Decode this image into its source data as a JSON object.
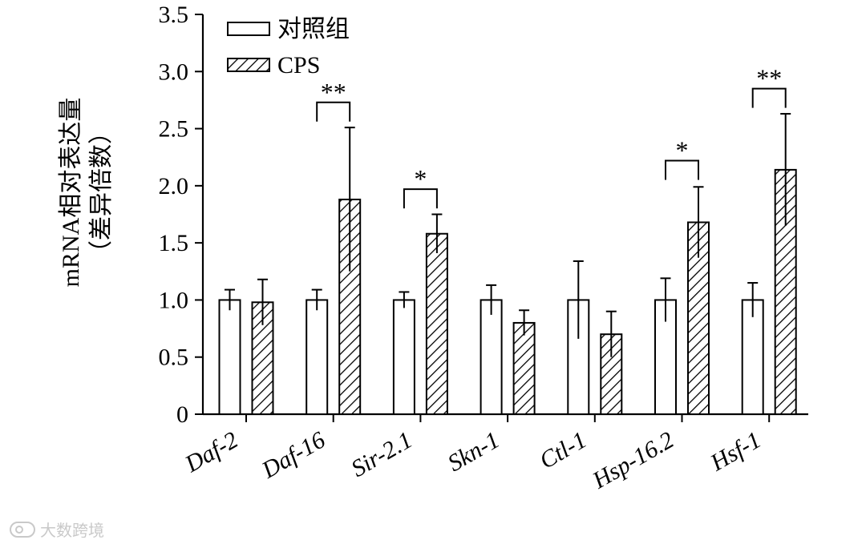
{
  "chart_data": {
    "type": "bar",
    "ylabel": "mRNA相对表达量（差异倍数）",
    "ylim": [
      0,
      3.5
    ],
    "yticks": [
      "0",
      "0.5",
      "1.0",
      "1.5",
      "2.0",
      "2.5",
      "3.0",
      "3.5"
    ],
    "categories": [
      "Daf-2",
      "Daf-16",
      "Sir-2.1",
      "Skn-1",
      "Ctl-1",
      "Hsp-16.2",
      "Hsf-1"
    ],
    "series": [
      {
        "name": "对照组",
        "pattern": "open",
        "values": [
          1.0,
          1.0,
          1.0,
          1.0,
          1.0,
          1.0,
          1.0
        ],
        "errors": [
          0.09,
          0.09,
          0.07,
          0.13,
          0.34,
          0.19,
          0.15
        ]
      },
      {
        "name": "CPS",
        "pattern": "hatched",
        "values": [
          0.98,
          1.88,
          1.58,
          0.8,
          0.7,
          1.68,
          2.14
        ],
        "errors": [
          0.2,
          0.63,
          0.17,
          0.11,
          0.2,
          0.31,
          0.49
        ]
      }
    ],
    "significance": [
      {
        "category": "Daf-16",
        "label": "**",
        "bracket_y": 2.73
      },
      {
        "category": "Sir-2.1",
        "label": "*",
        "bracket_y": 1.97
      },
      {
        "category": "Hsp-16.2",
        "label": "*",
        "bracket_y": 2.22
      },
      {
        "category": "Hsf-1",
        "label": "**",
        "bracket_y": 2.85
      }
    ],
    "legend_position": "top-left",
    "grid": false
  },
  "watermark": {
    "text": "大数跨境"
  }
}
